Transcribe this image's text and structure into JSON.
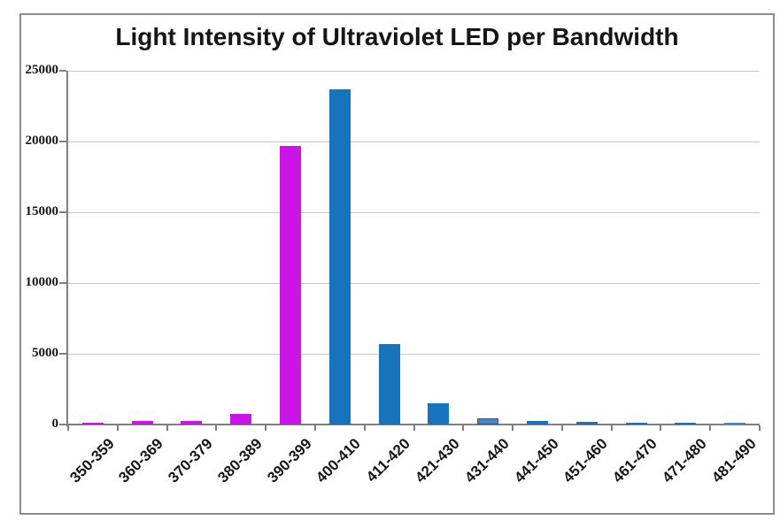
{
  "chart_data": {
    "type": "bar",
    "title": "Light Intensity of Ultraviolet LED per Bandwidth",
    "categories": [
      "350-359",
      "360-369",
      "370-379",
      "380-389",
      "390-399",
      "400-410",
      "411-420",
      "421-430",
      "431-440",
      "441-450",
      "451-460",
      "461-470",
      "471-480",
      "481-490"
    ],
    "values": [
      150,
      220,
      280,
      760,
      19700,
      23700,
      5700,
      1500,
      450,
      250,
      180,
      150,
      140,
      90
    ],
    "bar_colors": [
      "#cb15e8",
      "#cb15e8",
      "#cb15e8",
      "#cb15e8",
      "#cb15e8",
      "#1574bc",
      "#1574bc",
      "#1574bc",
      "#4f81bd",
      "#1574bc",
      "#1574bc",
      "#1574bc",
      "#1574bc",
      "#7d9ec9"
    ],
    "bar_border_colors": [
      "",
      "",
      "",
      "",
      "",
      "",
      "",
      "",
      "#2e5f8f",
      "",
      "",
      "",
      "",
      "#4f81bd"
    ],
    "xlabel": "",
    "ylabel": "",
    "ylim": [
      0,
      25000
    ],
    "yticks": [
      0,
      5000,
      10000,
      15000,
      20000,
      25000
    ],
    "ytick_labels": [
      "0",
      "5000",
      "10000",
      "15000",
      "20000",
      "25000"
    ],
    "grid": true,
    "legend": false
  },
  "colors": {
    "magenta_series": "#cb15e8",
    "blue_series": "#1574bc",
    "light_blue_series": "#4f81bd",
    "gridline": "#c6c6c6",
    "axis": "#7f7f7f",
    "frame_border": "#8c8c8c",
    "text": "#161616",
    "background": "#ffffff"
  }
}
